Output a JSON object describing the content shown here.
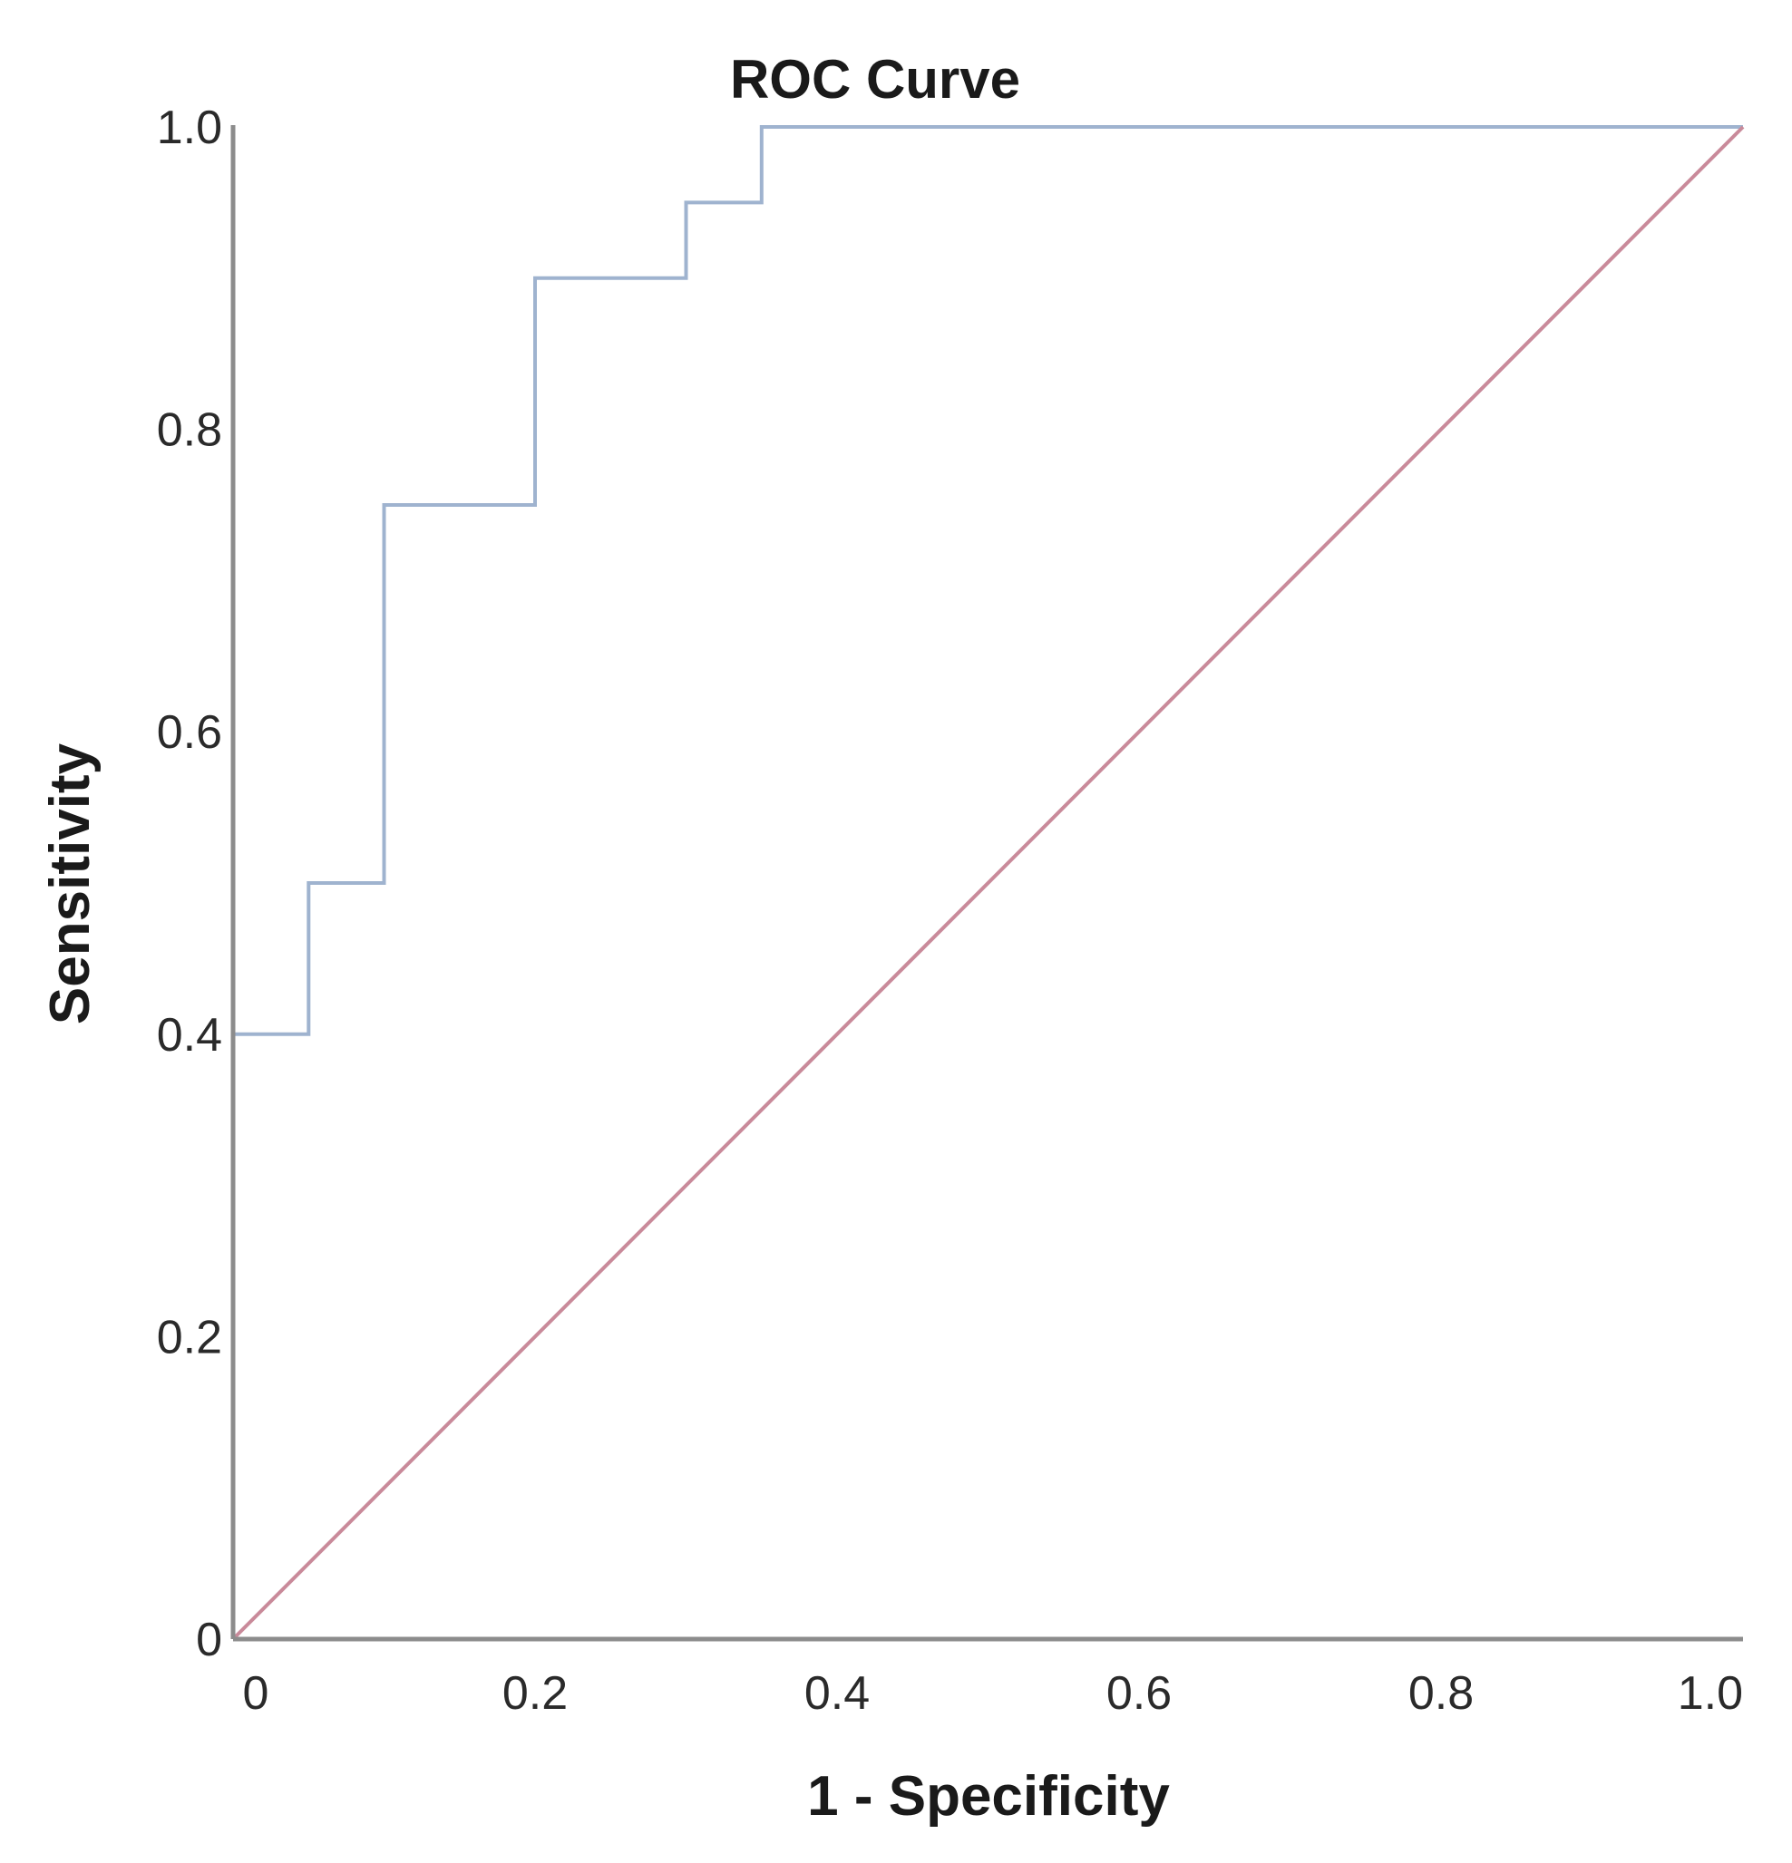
{
  "chart_data": {
    "type": "line",
    "title": "ROC Curve",
    "xlabel": "1 - Specificity",
    "ylabel": "Sensitivity",
    "xlim": [
      0,
      1.0
    ],
    "ylim": [
      0,
      1.0
    ],
    "x_ticks": [
      "0",
      "0.2",
      "0.4",
      "0.6",
      "0.8",
      "1.0"
    ],
    "y_ticks": [
      "0",
      "0.2",
      "0.4",
      "0.6",
      "0.8",
      "1.0"
    ],
    "grid": false,
    "legend": "none",
    "series": [
      {
        "color": "#9fb3cf",
        "step": true,
        "x": [
          0,
          0,
          0.05,
          0.05,
          0.1,
          0.1,
          0.2,
          0.2,
          0.3,
          0.3,
          0.35,
          0.35,
          1.0
        ],
        "y": [
          0,
          0.4,
          0.4,
          0.5,
          0.5,
          0.75,
          0.75,
          0.9,
          0.9,
          0.95,
          0.95,
          1.0,
          1.0
        ]
      },
      {
        "color": "#c98a9a",
        "step": false,
        "x": [
          0,
          1.0
        ],
        "y": [
          0,
          1.0
        ]
      }
    ],
    "axis_color": "#8c8c8c"
  }
}
